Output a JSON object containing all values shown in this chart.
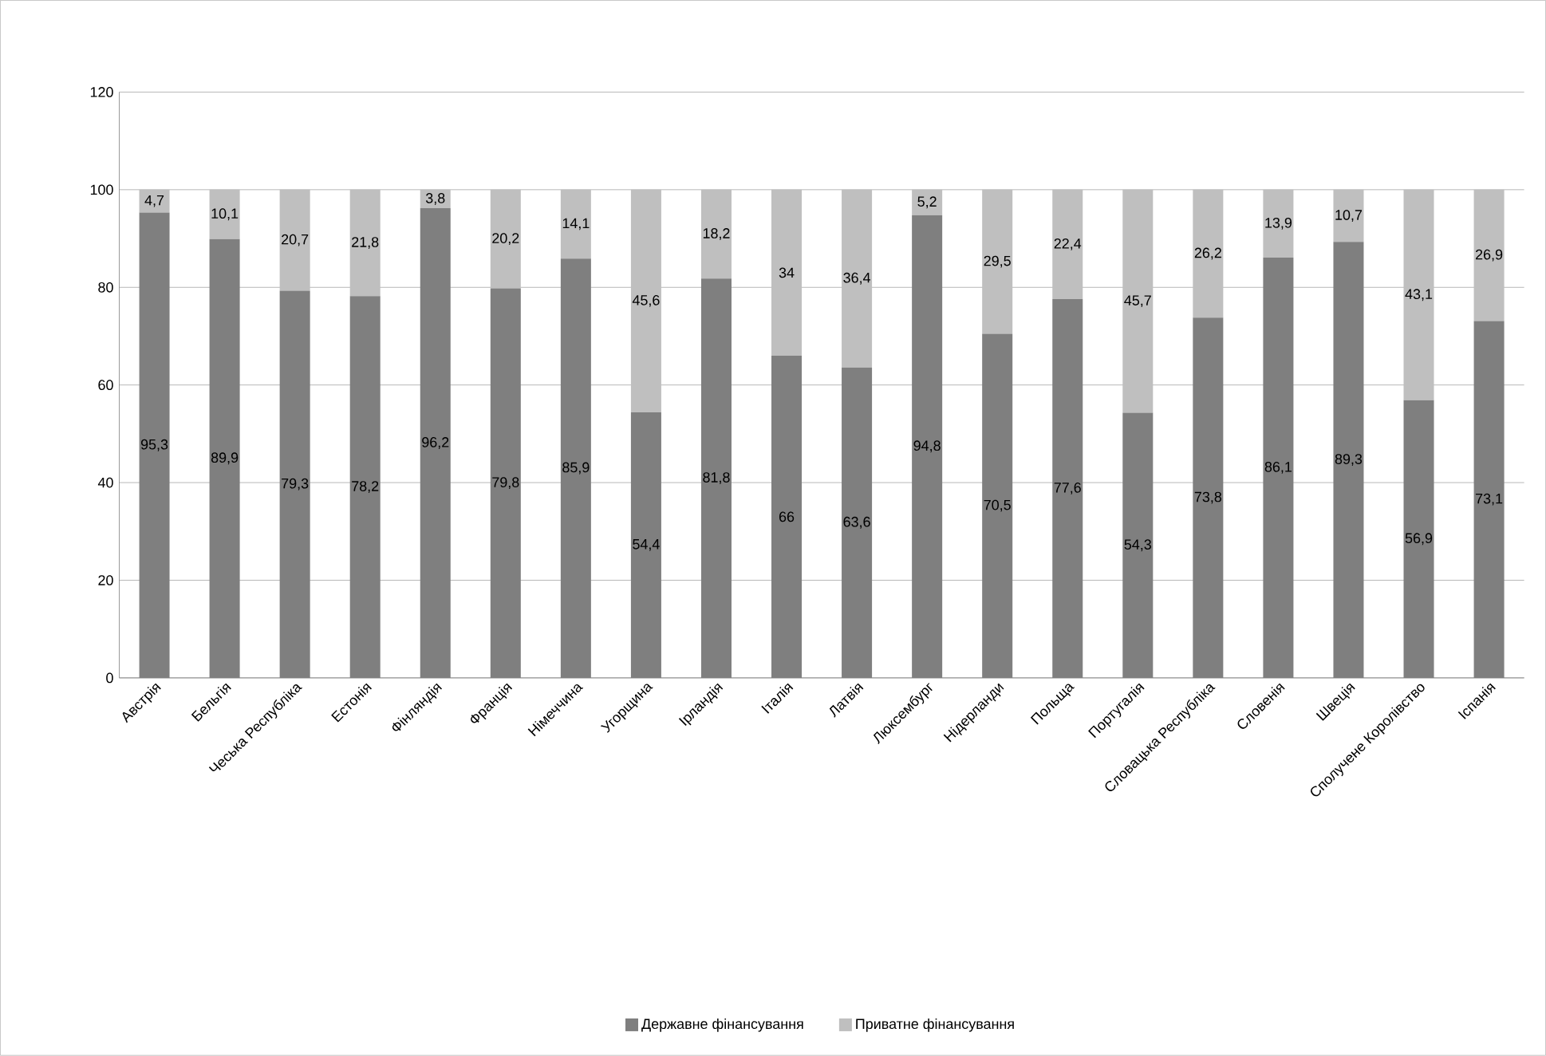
{
  "chart_data": {
    "type": "bar",
    "stacked": true,
    "categories": [
      "Австрія",
      "Бельгія",
      "Чеська Республіка",
      "Естонія",
      "Фінляндія",
      "Франція",
      "Німеччина",
      "Угорщина",
      "Ірландія",
      "Італія",
      "Латвія",
      "Люксембург",
      "Нідерланди",
      "Польща",
      "Португалія",
      "Словацька Республіка",
      "Словенія",
      "Швеція",
      "Сполучене Королівство",
      "Іспанія"
    ],
    "series": [
      {
        "name": "Державне фінансування",
        "color": "#7f7f7f",
        "values": [
          95.3,
          89.9,
          79.3,
          78.2,
          96.2,
          79.8,
          85.9,
          54.4,
          81.8,
          66,
          63.6,
          94.8,
          70.5,
          77.6,
          54.3,
          73.8,
          86.1,
          89.3,
          56.9,
          73.1
        ],
        "value_labels": [
          "95,3",
          "89,9",
          "79,3",
          "78,2",
          "96,2",
          "79,8",
          "85,9",
          "54,4",
          "81,8",
          "66",
          "63,6",
          "94,8",
          "70,5",
          "77,6",
          "54,3",
          "73,8",
          "86,1",
          "89,3",
          "56,9",
          "73,1"
        ]
      },
      {
        "name": "Приватне фінансування",
        "color": "#bfbfbf",
        "values": [
          4.7,
          10.1,
          20.7,
          21.8,
          3.8,
          20.2,
          14.1,
          45.6,
          18.2,
          34,
          36.4,
          5.2,
          29.5,
          22.4,
          45.7,
          26.2,
          13.9,
          10.7,
          43.1,
          26.9
        ],
        "value_labels": [
          "4,7",
          "10,1",
          "20,7",
          "21,8",
          "3,8",
          "20,2",
          "14,1",
          "45,6",
          "18,2",
          "34",
          "36,4",
          "5,2",
          "29,5",
          "22,4",
          "45,7",
          "26,2",
          "13,9",
          "10,7",
          "43,1",
          "26,9"
        ]
      }
    ],
    "ylim": [
      0,
      120
    ],
    "yticks": [
      0,
      20,
      40,
      60,
      80,
      100,
      120
    ],
    "grid": "y",
    "legend": "bottom"
  }
}
